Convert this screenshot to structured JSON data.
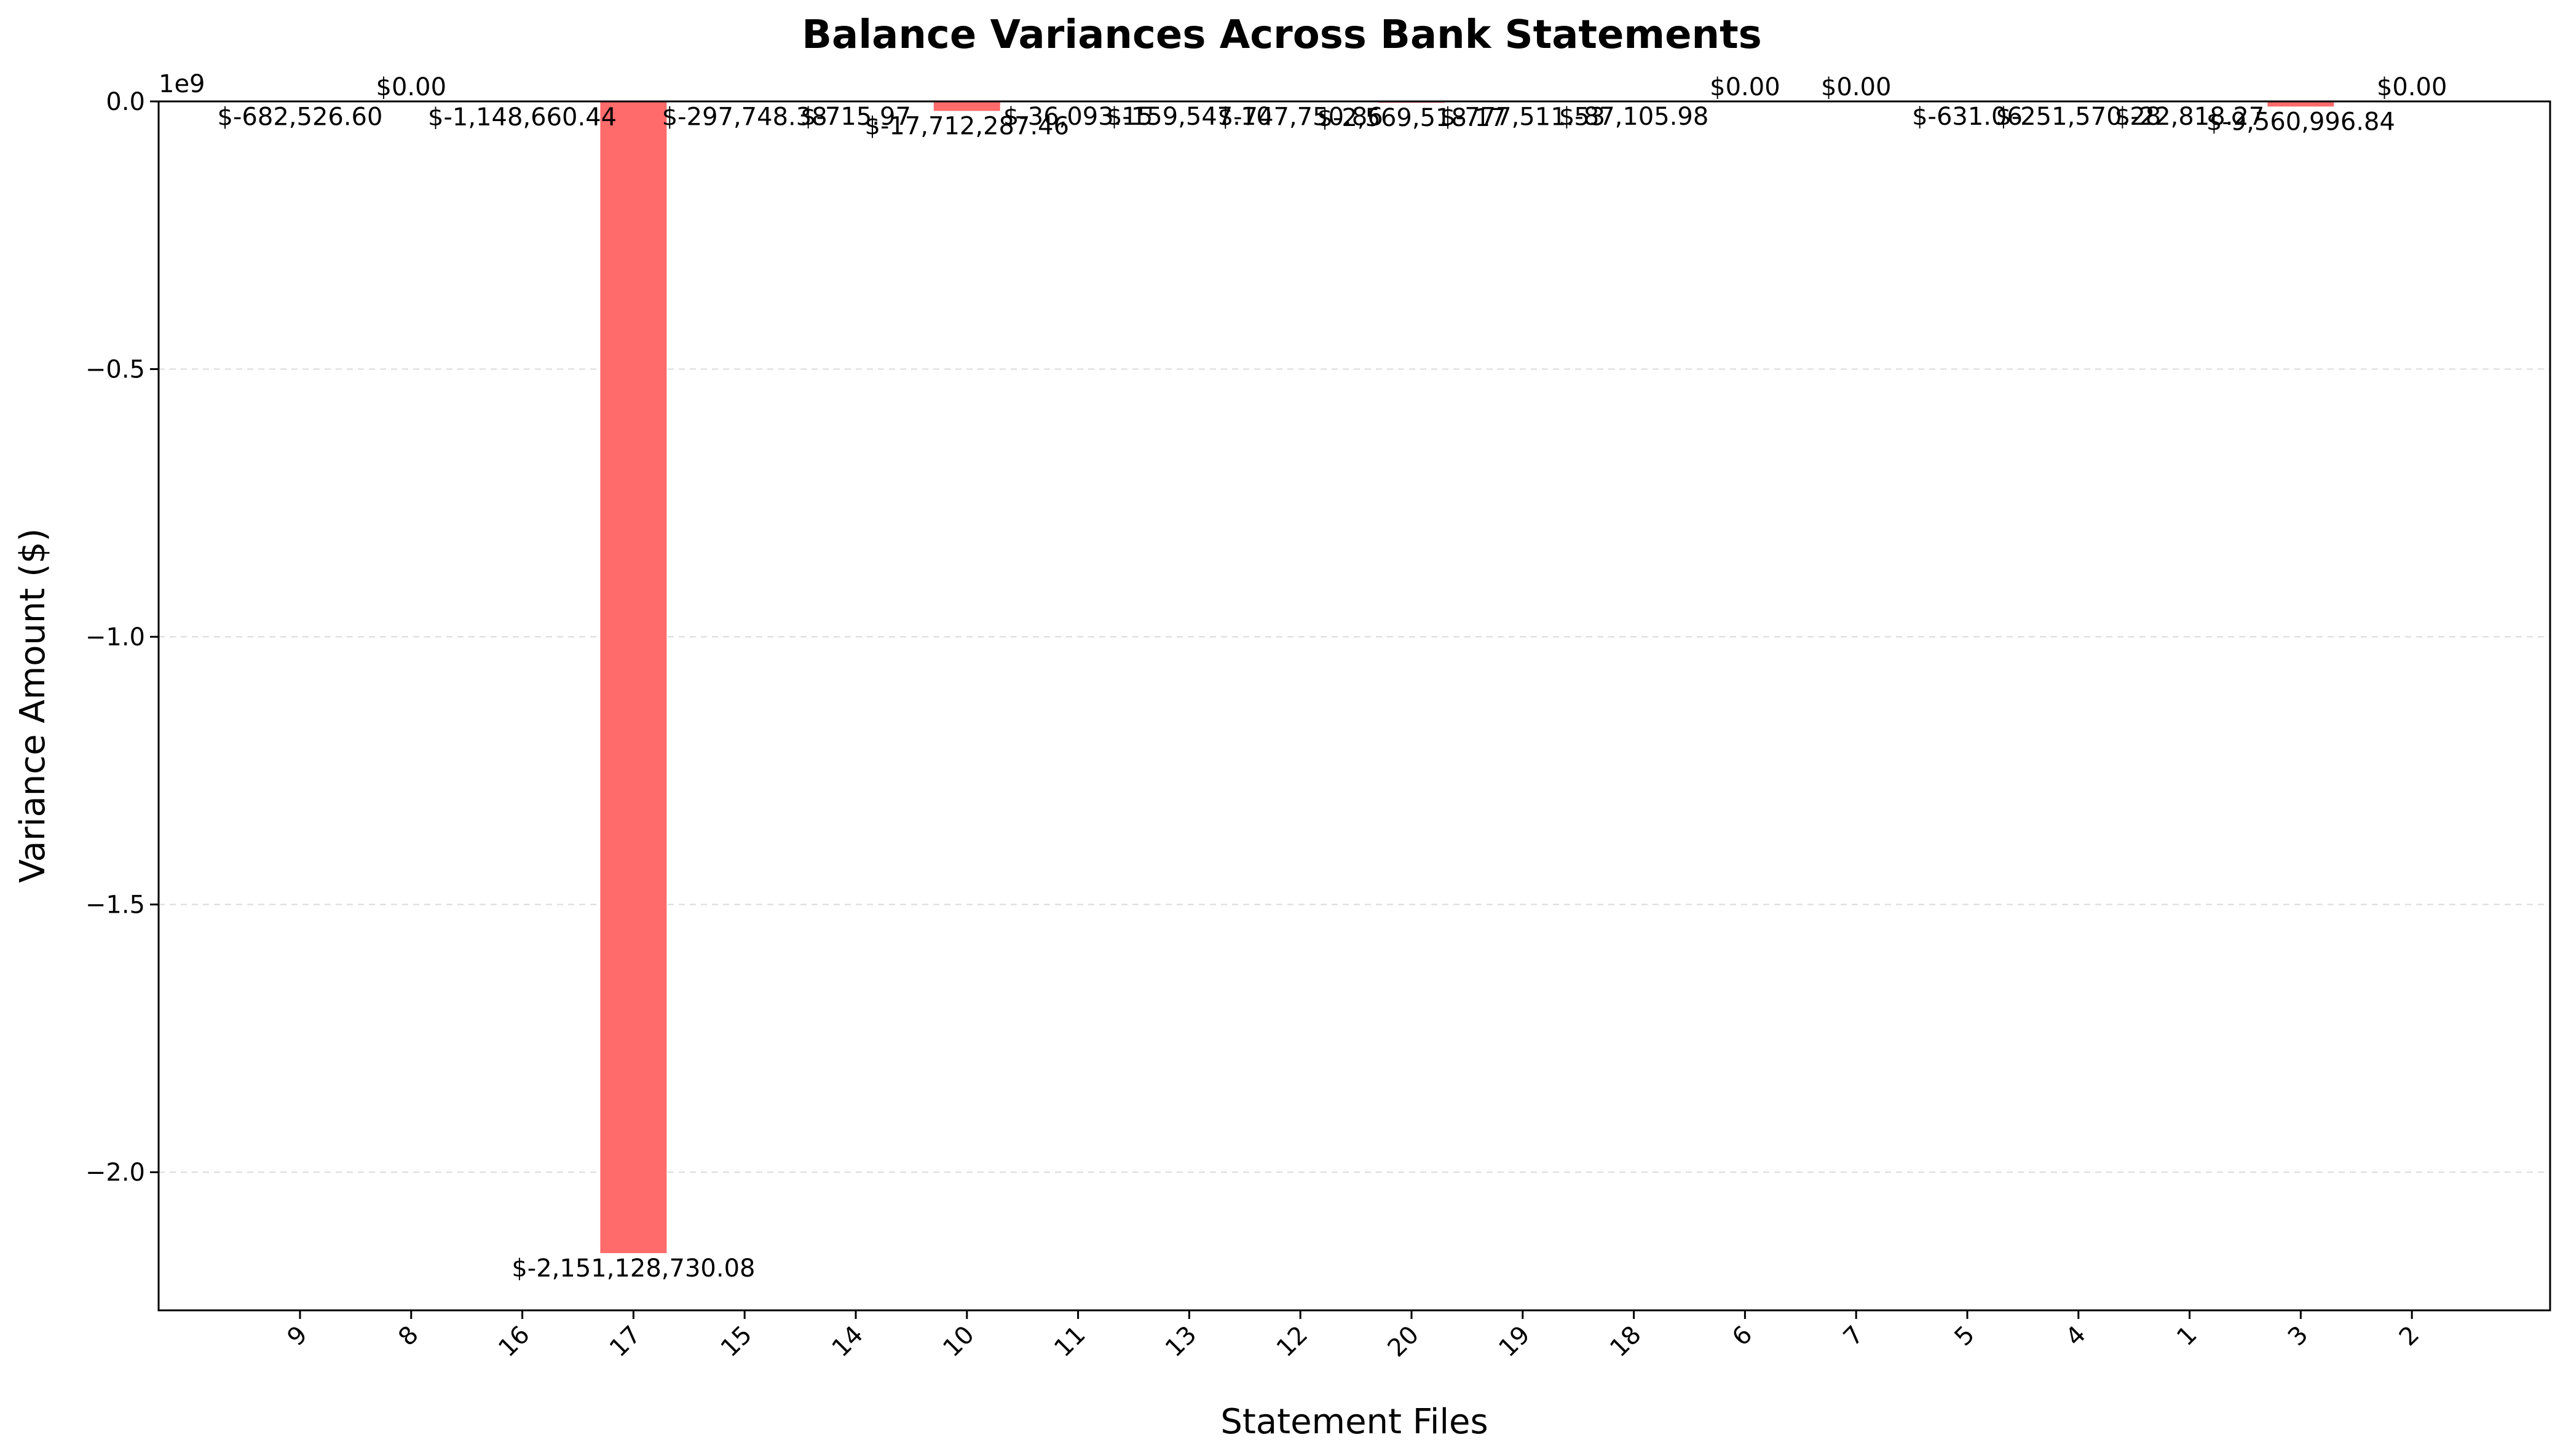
{
  "chart_data": {
    "type": "bar",
    "title": "Balance Variances Across Bank Statements",
    "xlabel": "Statement Files",
    "ylabel": "Variance Amount ($)",
    "offset_text": "1e9",
    "scale": 1000000000,
    "ylim": [
      -2.258,
      0.0
    ],
    "yticks": [
      0.0,
      -0.5,
      -1.0,
      -1.5,
      -2.0
    ],
    "ytick_labels": [
      "0.0",
      "−0.5",
      "−1.0",
      "−1.5",
      "−2.0"
    ],
    "grid": "y-dashed",
    "bar_color": "#ff6b6b",
    "categories": [
      "9",
      "8",
      "16",
      "17",
      "15",
      "14",
      "10",
      "11",
      "13",
      "12",
      "20",
      "19",
      "18",
      "6",
      "7",
      "5",
      "4",
      "1",
      "3",
      "2"
    ],
    "values": [
      -682526.6,
      0.0,
      -1148660.44,
      -2151128730.08,
      -297748.38,
      -715.97,
      -17712287.46,
      -36093.15,
      -159547.1,
      -747750.86,
      -2569518.17,
      -777511.53,
      -87105.98,
      0.0,
      0.0,
      -631.06,
      -251570.28,
      -22818.27,
      -9560996.84,
      0.0
    ],
    "data_labels": [
      "$-682,526.60",
      "$0.00",
      "$-1,148,660.44",
      "$-2,151,128,730.08",
      "$-297,748.38",
      "$-715.97",
      "$-17,712,287.46",
      "$-36,093.15",
      "$-159,547.10",
      "$-747,750.86",
      "$-2,569,518.17",
      "$-777,511.53",
      "$-87,105.98",
      "$0.00",
      "$0.00",
      "$-631.06",
      "$-251,570.28",
      "$-22,818.27",
      "$-9,560,996.84",
      "$0.00"
    ]
  }
}
